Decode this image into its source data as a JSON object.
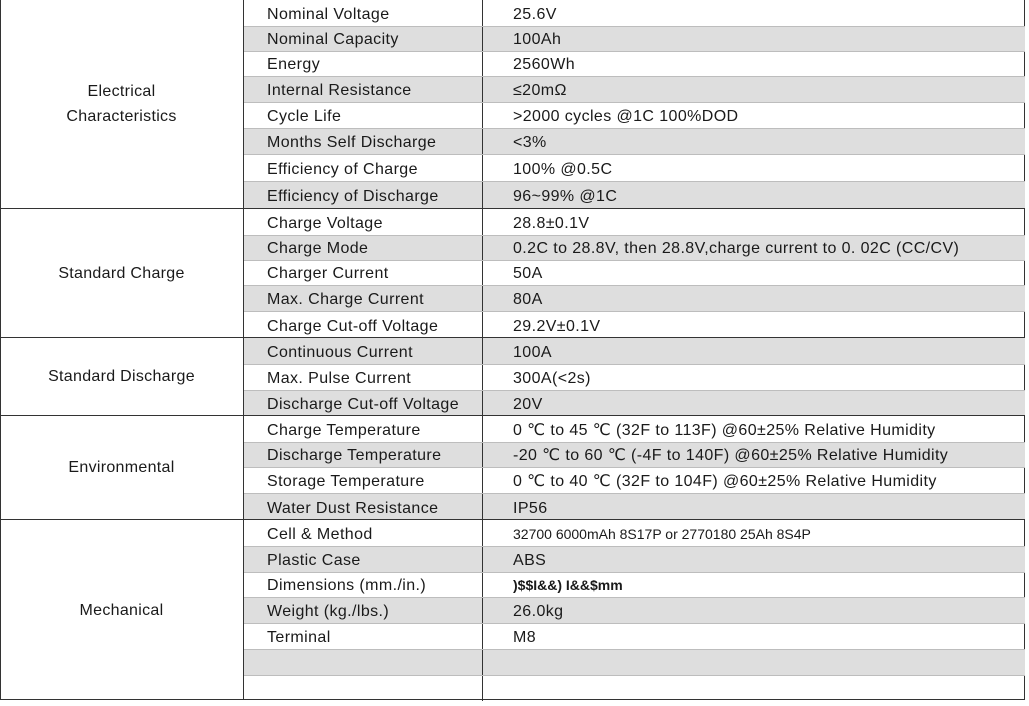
{
  "sections": [
    {
      "category": "Electrical\nCharacteristics",
      "rows": [
        {
          "name": "Nominal Voltage",
          "value": "25.6V"
        },
        {
          "name": "Nominal Capacity",
          "value": "100Ah"
        },
        {
          "name": "Energy",
          "value": "2560Wh"
        },
        {
          "name": "Internal Resistance",
          "value": "≤20mΩ"
        },
        {
          "name": "Cycle Life",
          "value": ">2000 cycles @1C 100%DOD"
        },
        {
          "name": "Months Self Discharge",
          "value": "<3%"
        },
        {
          "name": "Efficiency of Charge",
          "value": "100% @0.5C"
        },
        {
          "name": "Efficiency of Discharge",
          "value": "96~99% @1C"
        }
      ]
    },
    {
      "category": "Standard Charge",
      "rows": [
        {
          "name": "Charge Voltage",
          "value": "28.8±0.1V"
        },
        {
          "name": "Charge Mode",
          "value": "0.2C to 28.8V, then 28.8V,charge current to 0. 02C (CC/CV)"
        },
        {
          "name": "Charger Current",
          "value": "50A"
        },
        {
          "name": "Max. Charge Current",
          "value": "80A"
        },
        {
          "name": "Charge Cut-off Voltage",
          "value": "29.2V±0.1V"
        }
      ]
    },
    {
      "category": "Standard Discharge",
      "rows": [
        {
          "name": "Continuous Current",
          "value": "100A"
        },
        {
          "name": "Max. Pulse Current",
          "value": "300A(<2s)"
        },
        {
          "name": "Discharge Cut-off Voltage",
          "value": "20V"
        }
      ]
    },
    {
      "category": "Environmental",
      "rows": [
        {
          "name": "Charge Temperature",
          "value": "0 ℃ to 45 ℃ (32F to 113F) @60±25% Relative Humidity"
        },
        {
          "name": "Discharge Temperature",
          "value": "-20 ℃ to 60 ℃ (-4F to 140F) @60±25% Relative Humidity"
        },
        {
          "name": "Storage Temperature",
          "value": "0 ℃ to 40 ℃ (32F to 104F) @60±25% Relative Humidity"
        },
        {
          "name": "Water Dust Resistance",
          "value": "IP56"
        }
      ]
    },
    {
      "category": "Mechanical",
      "rows": [
        {
          "name": "Cell & Method",
          "value": "32700 6000mAh 8S17P or 2770180 25Ah 8S4P"
        },
        {
          "name": "Plastic Case",
          "value": "ABS"
        },
        {
          "name": "Dimensions (mm./in.)",
          "value": ")$$I&&) I&&$mm"
        },
        {
          "name": "Weight (kg./lbs.)",
          "value": "26.0kg"
        },
        {
          "name": "Terminal",
          "value": "M8"
        },
        {
          "name": "",
          "value": ""
        },
        {
          "name": "",
          "value": ""
        }
      ]
    }
  ]
}
